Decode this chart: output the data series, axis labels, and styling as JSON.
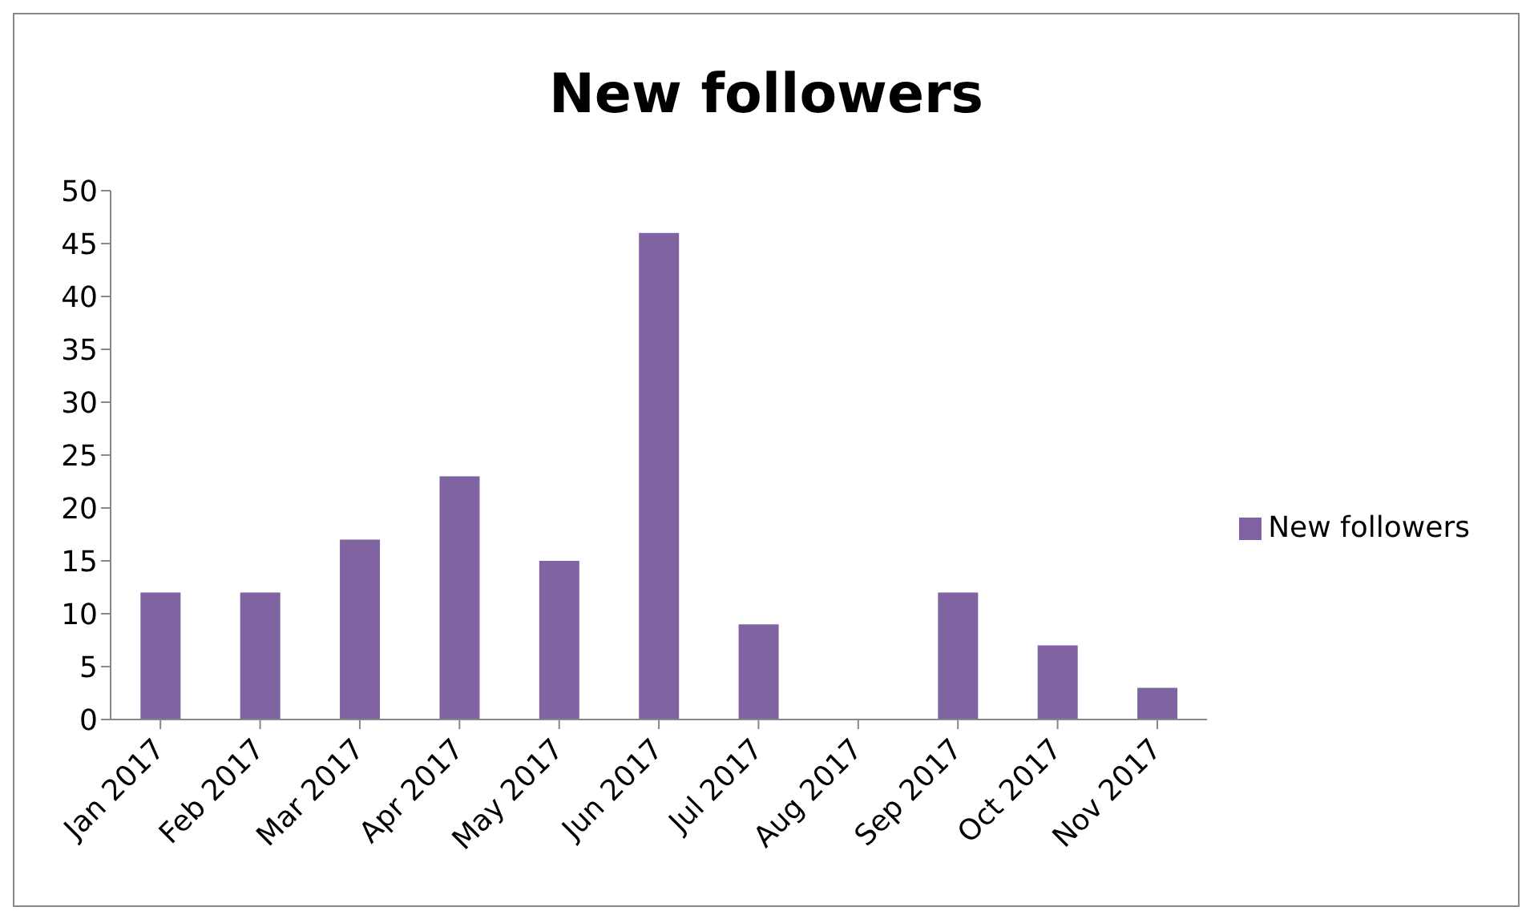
{
  "chart_data": {
    "type": "bar",
    "title": "New followers",
    "categories": [
      "Jan 2017",
      "Feb 2017",
      "Mar 2017",
      "Apr 2017",
      "May 2017",
      "Jun 2017",
      "Jul 2017",
      "Aug 2017",
      "Sep 2017",
      "Oct 2017",
      "Nov 2017"
    ],
    "series": [
      {
        "name": "New followers",
        "color": "#8064a2",
        "values": [
          12,
          12,
          17,
          23,
          15,
          46,
          9,
          0,
          12,
          7,
          3
        ]
      }
    ],
    "ylim": [
      0,
      50
    ],
    "yticks": [
      0,
      5,
      10,
      15,
      20,
      25,
      30,
      35,
      40,
      45,
      50
    ],
    "grid": false,
    "legend": "right"
  }
}
